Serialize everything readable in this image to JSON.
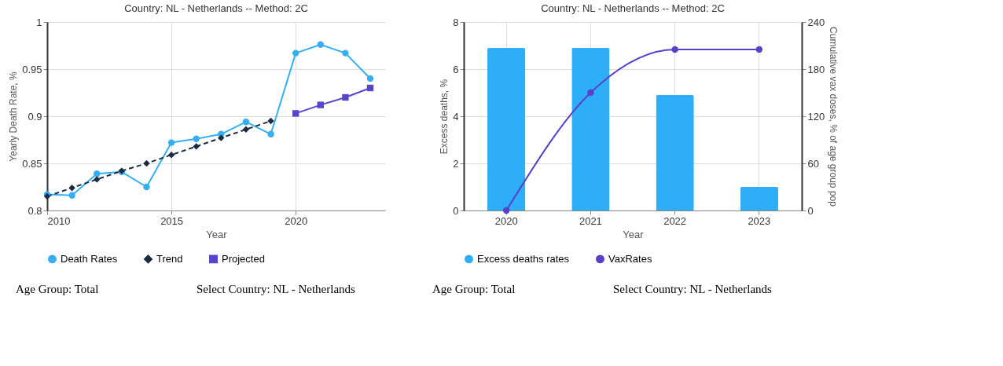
{
  "chart_data": [
    {
      "type": "line",
      "title": "Country: NL - Netherlands -- Method: 2C",
      "xlabel": "Year",
      "ylabel": "Yearly Death Rate, %",
      "xlim": [
        2010,
        2023.6
      ],
      "xticks": [
        2010,
        2015,
        2020
      ],
      "ylim": [
        0.8,
        1
      ],
      "yticks": [
        {
          "value": 0.8,
          "label": "0.8"
        },
        0.85,
        {
          "value": 0.9,
          "label": "0.9"
        },
        0.95,
        {
          "value": 1,
          "label": "1"
        }
      ],
      "grid": true,
      "legend": "bottom",
      "series": [
        {
          "name": "Death Rates",
          "color": "#35aef2",
          "marker": "circle",
          "line_style": "solid",
          "x": [
            2010,
            2011,
            2012,
            2013,
            2014,
            2015,
            2016,
            2017,
            2018,
            2019,
            2020,
            2021,
            2022,
            2023
          ],
          "values": [
            0.817,
            0.816,
            0.839,
            0.841,
            0.825,
            0.872,
            0.876,
            0.881,
            0.894,
            0.881,
            0.967,
            0.976,
            0.967,
            0.94
          ]
        },
        {
          "name": "Trend",
          "color": "#1c2a44",
          "marker": "diamond",
          "line_style": "dashed",
          "x": [
            2010,
            2011,
            2012,
            2013,
            2014,
            2015,
            2016,
            2017,
            2018,
            2019
          ],
          "values": [
            0.815,
            0.824,
            0.833,
            0.842,
            0.85,
            0.859,
            0.868,
            0.877,
            0.886,
            0.895
          ]
        },
        {
          "name": "Projected",
          "color": "#5546cc",
          "marker": "square",
          "line_style": "solid",
          "x": [
            2020,
            2021,
            2022,
            2023
          ],
          "values": [
            0.903,
            0.912,
            0.92,
            0.93
          ]
        }
      ],
      "annotations": [
        "Age Group: Total",
        "Select Country: NL - Netherlands"
      ]
    },
    {
      "type": "bar",
      "title": "Country: NL - Netherlands -- Method: 2C",
      "xlabel": "Year",
      "ylabel": "Excess deaths, %",
      "y2label": "Cumulative vax doses, % of age group pop",
      "categories": [
        "2020",
        "2021",
        "2022",
        "2023"
      ],
      "ylim": [
        0,
        8
      ],
      "yticks": [
        0,
        2,
        4,
        6,
        8
      ],
      "y2lim": [
        0,
        240
      ],
      "y2ticks": [
        0,
        60,
        120,
        180,
        240
      ],
      "grid": true,
      "legend": "bottom",
      "series": [
        {
          "name": "Excess deaths rates",
          "type": "bar",
          "color": "#2eadf8",
          "values": [
            6.9,
            6.9,
            4.9,
            1.0
          ]
        },
        {
          "name": "VaxRates",
          "type": "line",
          "axis": "y2",
          "marker": "circle",
          "color": "#5a3fc8",
          "values": [
            0,
            150,
            205,
            205
          ]
        }
      ],
      "annotations": [
        "Age Group: Total",
        "Select Country: NL - Netherlands"
      ]
    }
  ]
}
